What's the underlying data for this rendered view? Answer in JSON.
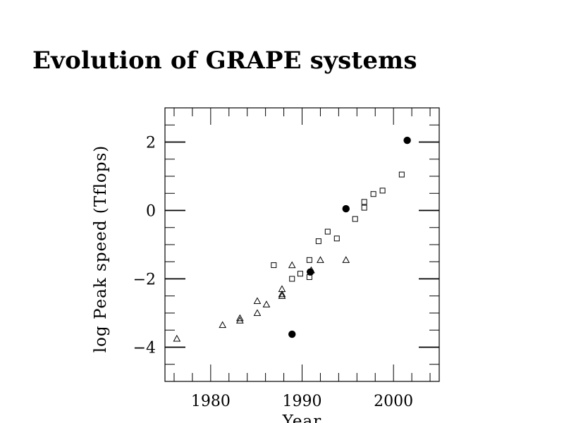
{
  "chart_data": {
    "type": "scatter",
    "title": "Evolution of GRAPE systems",
    "xlabel": "Year",
    "ylabel": "log Peak speed (Tflops)",
    "xlim": [
      1975,
      2005
    ],
    "ylim": [
      -5,
      3
    ],
    "x_ticks": [
      {
        "value": 1980,
        "label": "1980"
      },
      {
        "value": 1990,
        "label": "1990"
      },
      {
        "value": 2000,
        "label": "2000"
      }
    ],
    "y_ticks": [
      {
        "value": 2,
        "label": "2"
      },
      {
        "value": 0,
        "label": "0"
      },
      {
        "value": -2,
        "label": "−2"
      },
      {
        "value": -4,
        "label": "−4"
      }
    ],
    "series": [
      {
        "name": "triangles",
        "marker": "triangle",
        "points": [
          {
            "x": 1976.3,
            "y": -3.75
          },
          {
            "x": 1981.3,
            "y": -3.35
          },
          {
            "x": 1983.2,
            "y": -3.15
          },
          {
            "x": 1983.2,
            "y": -3.22
          },
          {
            "x": 1985.1,
            "y": -2.65
          },
          {
            "x": 1985.1,
            "y": -3.0
          },
          {
            "x": 1986.1,
            "y": -2.75
          },
          {
            "x": 1987.8,
            "y": -2.3
          },
          {
            "x": 1987.8,
            "y": -2.45
          },
          {
            "x": 1987.8,
            "y": -2.5
          },
          {
            "x": 1988.9,
            "y": -1.6
          },
          {
            "x": 1991.0,
            "y": -1.75
          },
          {
            "x": 1992.0,
            "y": -1.45
          },
          {
            "x": 1994.8,
            "y": -1.45
          }
        ]
      },
      {
        "name": "squares",
        "marker": "square",
        "points": [
          {
            "x": 1986.9,
            "y": -1.6
          },
          {
            "x": 1988.9,
            "y": -2.0
          },
          {
            "x": 1989.8,
            "y": -1.85
          },
          {
            "x": 1990.8,
            "y": -1.45
          },
          {
            "x": 1990.8,
            "y": -1.95
          },
          {
            "x": 1991.8,
            "y": -0.9
          },
          {
            "x": 1992.8,
            "y": -0.62
          },
          {
            "x": 1993.8,
            "y": -0.82
          },
          {
            "x": 1995.8,
            "y": -0.25
          },
          {
            "x": 1996.8,
            "y": 0.25
          },
          {
            "x": 1996.8,
            "y": 0.08
          },
          {
            "x": 1997.8,
            "y": 0.48
          },
          {
            "x": 1998.8,
            "y": 0.58
          },
          {
            "x": 2000.9,
            "y": 1.05
          }
        ]
      },
      {
        "name": "filled circles",
        "marker": "circle",
        "points": [
          {
            "x": 1988.9,
            "y": -3.62
          },
          {
            "x": 1990.9,
            "y": -1.8
          },
          {
            "x": 1994.8,
            "y": 0.05
          },
          {
            "x": 2001.5,
            "y": 2.05
          }
        ]
      }
    ]
  }
}
